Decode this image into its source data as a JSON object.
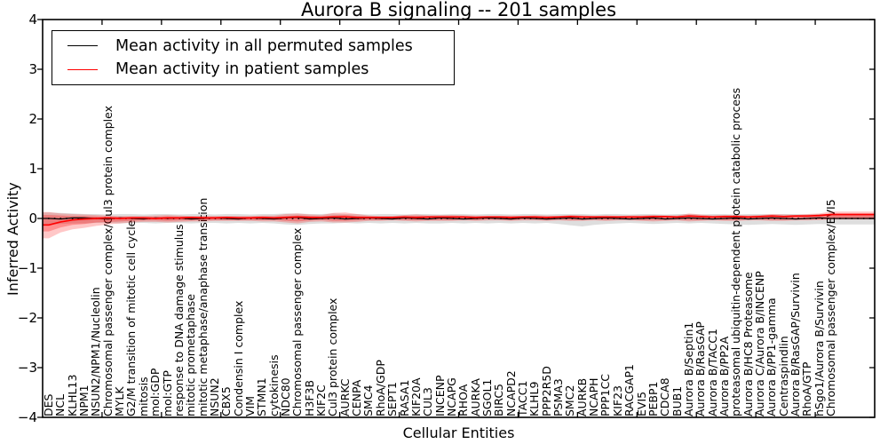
{
  "title": "Aurora B signaling -- 201 samples",
  "axes": {
    "x_label": "Cellular Entities",
    "y_label": "Inferred Activity"
  },
  "legend": {
    "items": [
      {
        "label": "Mean activity in all permuted samples",
        "color": "#000000"
      },
      {
        "label": "Mean activity in patient samples",
        "color": "#ff0000"
      }
    ]
  },
  "colors": {
    "background": "#ffffff",
    "frame": "#000000",
    "permuted_line": "#000000",
    "patient_line": "#ff0000",
    "permuted_band": "rgba(0,0,0,0.13)",
    "patient_band": "rgba(255,0,0,0.22)",
    "patient_band_inner": "rgba(255,0,0,0.28)",
    "zero_line": "#000000"
  },
  "chart_data": {
    "type": "line",
    "title": "Aurora B signaling -- 201 samples",
    "xlabel": "Cellular Entities",
    "ylabel": "Inferred Activity",
    "ylim": [
      -4,
      4
    ],
    "grid": false,
    "legend_position": "upper left",
    "zero_line": true,
    "yticks": [
      {
        "label": "4",
        "value": 4
      },
      {
        "label": "3",
        "value": 3
      },
      {
        "label": "2",
        "value": 2
      },
      {
        "label": "1",
        "value": 1
      },
      {
        "label": "0",
        "value": 0
      },
      {
        "label": "−1",
        "value": -1
      },
      {
        "label": "−2",
        "value": -2
      },
      {
        "label": "−3",
        "value": -3
      },
      {
        "label": "−4",
        "value": -4
      }
    ],
    "categories": [
      "DES",
      "NCL",
      "KLHL13",
      "NPM1",
      "NSUN2/NPM1/Nucleolin",
      "Chromosomal passenger complex/Cul3 protein complex",
      "MYLK",
      "G2/M transition of mitotic cell cycle",
      "mitosis",
      "mol:GDP",
      "mol:GTP",
      "response to DNA damage stimulus",
      "mitotic prometaphase",
      "mitotic metaphase/anaphase transition",
      "NSUN2",
      "CBX5",
      "Condensin I complex",
      "VIM",
      "STMN1",
      "cytokinesis",
      "NDC80",
      "Chromosomal passenger complex",
      "H3F3B",
      "KIF2C",
      "Cul3 protein complex",
      "AURKC",
      "CENPA",
      "SMC4",
      "RhoA/GDP",
      "SEPT1",
      "RASA1",
      "KIF20A",
      "CUL3",
      "INCENP",
      "NCAPG",
      "RHOA",
      "AURKA",
      "SGOL1",
      "BIRC5",
      "NCAPD2",
      "TACC1",
      "KLHL9",
      "PPP2R5D",
      "PSMA3",
      "SMC2",
      "AURKB",
      "NCAPH",
      "PPP1CC",
      "KIF23",
      "RACGAP1",
      "EVI5",
      "PEBP1",
      "CDCA8",
      "BUB1",
      "Aurora B/Septin1",
      "Aurora B/RasGAP",
      "Aurora B/TACC1",
      "Aurora B/PP2A",
      "proteasomal ubiquitin-dependent protein catabolic process",
      "Aurora B/HC8 Proteasome",
      "Aurora C/Aurora B/INCENP",
      "Aurora B/PP1-gamma",
      "Centraspindlin",
      "Aurora B/RasGAP/Survivin",
      "RhoA/GTP",
      "hSgo1/Aurora B/Survivin",
      "Chromosomal passenger complex/EVI5"
    ],
    "series": [
      {
        "name": "Mean activity in all permuted samples",
        "color": "#000000",
        "values": [
          0.0,
          -0.01,
          0.01,
          0.01,
          0.0,
          -0.01,
          0.01,
          0.0,
          -0.01,
          0.01,
          0.0,
          0.01,
          -0.01,
          0.0,
          0.01,
          0.0,
          -0.01,
          0.01,
          0.0,
          -0.01,
          0.01,
          0.02,
          -0.01,
          0.0,
          0.01,
          -0.01,
          0.0,
          0.01,
          0.0,
          -0.01,
          0.01,
          0.0,
          -0.01,
          0.01,
          0.0,
          -0.01,
          0.0,
          0.01,
          0.0,
          -0.01,
          0.01,
          0.0,
          -0.01,
          0.0,
          0.01,
          -0.01,
          0.0,
          0.01,
          0.0,
          -0.01,
          0.0,
          0.01,
          -0.01,
          0.0,
          0.01,
          0.0,
          -0.01,
          0.0,
          0.01,
          -0.01,
          0.0,
          0.01,
          0.0,
          -0.01,
          0.0,
          0.01,
          0.0
        ],
        "band_upper": [
          0.12,
          0.11,
          0.1,
          0.09,
          0.09,
          0.08,
          0.09,
          0.09,
          0.08,
          0.09,
          0.09,
          0.08,
          0.09,
          0.09,
          0.08,
          0.09,
          0.09,
          0.08,
          0.09,
          0.09,
          0.1,
          0.1,
          0.09,
          0.09,
          0.1,
          0.09,
          0.09,
          0.08,
          0.09,
          0.09,
          0.08,
          0.09,
          0.09,
          0.08,
          0.09,
          0.09,
          0.08,
          0.09,
          0.09,
          0.08,
          0.09,
          0.09,
          0.08,
          0.09,
          0.09,
          0.09,
          0.08,
          0.09,
          0.09,
          0.08,
          0.09,
          0.09,
          0.08,
          0.09,
          0.09,
          0.08,
          0.09,
          0.09,
          0.08,
          0.09,
          0.09,
          0.08,
          0.09,
          0.09,
          0.08,
          0.09,
          0.08
        ],
        "band_lower": [
          -0.12,
          -0.11,
          -0.1,
          -0.1,
          -0.09,
          -0.09,
          -0.1,
          -0.09,
          -0.09,
          -0.1,
          -0.09,
          -0.09,
          -0.1,
          -0.09,
          -0.09,
          -0.1,
          -0.09,
          -0.1,
          -0.09,
          -0.1,
          -0.12,
          -0.13,
          -0.11,
          -0.1,
          -0.1,
          -0.09,
          -0.1,
          -0.09,
          -0.1,
          -0.09,
          -0.1,
          -0.09,
          -0.1,
          -0.1,
          -0.09,
          -0.1,
          -0.09,
          -0.1,
          -0.09,
          -0.1,
          -0.09,
          -0.1,
          -0.09,
          -0.11,
          -0.14,
          -0.16,
          -0.13,
          -0.11,
          -0.1,
          -0.09,
          -0.1,
          -0.11,
          -0.1,
          -0.09,
          -0.1,
          -0.09,
          -0.1,
          -0.11,
          -0.12,
          -0.13,
          -0.12,
          -0.11,
          -0.12,
          -0.13,
          -0.12,
          -0.11,
          -0.12
        ]
      },
      {
        "name": "Mean activity in patient samples",
        "color": "#ff0000",
        "values": [
          -0.13,
          -0.07,
          -0.03,
          -0.01,
          0.0,
          0.01,
          0.0,
          0.01,
          0.01,
          0.0,
          0.01,
          0.01,
          0.02,
          0.01,
          0.01,
          0.02,
          0.01,
          0.01,
          0.02,
          0.01,
          0.02,
          0.03,
          0.02,
          0.02,
          0.03,
          0.03,
          0.02,
          0.02,
          0.02,
          0.02,
          0.03,
          0.02,
          0.03,
          0.03,
          0.03,
          0.03,
          0.02,
          0.03,
          0.03,
          0.02,
          0.03,
          0.03,
          0.02,
          0.03,
          0.04,
          0.03,
          0.03,
          0.03,
          0.03,
          0.03,
          0.03,
          0.04,
          0.04,
          0.03,
          0.05,
          0.04,
          0.03,
          0.04,
          0.04,
          0.03,
          0.04,
          0.05,
          0.04,
          0.05,
          0.05,
          0.06,
          0.08
        ],
        "band_upper": [
          0.13,
          0.1,
          0.09,
          0.08,
          0.07,
          0.06,
          0.05,
          0.05,
          0.05,
          0.06,
          0.07,
          0.06,
          0.05,
          0.05,
          0.05,
          0.05,
          0.05,
          0.05,
          0.06,
          0.06,
          0.09,
          0.1,
          0.08,
          0.07,
          0.11,
          0.12,
          0.09,
          0.06,
          0.05,
          0.05,
          0.07,
          0.08,
          0.06,
          0.07,
          0.07,
          0.06,
          0.06,
          0.05,
          0.05,
          0.06,
          0.05,
          0.06,
          0.06,
          0.05,
          0.07,
          0.06,
          0.05,
          0.06,
          0.05,
          0.06,
          0.06,
          0.07,
          0.06,
          0.06,
          0.1,
          0.08,
          0.06,
          0.07,
          0.07,
          0.06,
          0.07,
          0.09,
          0.08,
          0.07,
          0.09,
          0.1,
          0.14
        ],
        "band_lower": [
          -0.4,
          -0.28,
          -0.22,
          -0.19,
          -0.15,
          -0.12,
          -0.1,
          -0.08,
          -0.07,
          -0.07,
          -0.08,
          -0.07,
          -0.06,
          -0.06,
          -0.05,
          -0.05,
          -0.05,
          -0.05,
          -0.06,
          -0.06,
          -0.08,
          -0.1,
          -0.07,
          -0.06,
          -0.08,
          -0.08,
          -0.07,
          -0.05,
          -0.05,
          -0.04,
          -0.05,
          -0.06,
          -0.05,
          -0.05,
          -0.05,
          -0.04,
          -0.05,
          -0.04,
          -0.04,
          -0.05,
          -0.04,
          -0.04,
          -0.05,
          -0.04,
          -0.05,
          -0.05,
          -0.04,
          -0.05,
          -0.04,
          -0.04,
          -0.05,
          -0.06,
          -0.05,
          -0.04,
          -0.06,
          -0.05,
          -0.04,
          -0.05,
          -0.05,
          -0.04,
          -0.04,
          -0.05,
          -0.05,
          -0.04,
          -0.04,
          -0.03,
          -0.02
        ],
        "inner_band_upper": [
          0.07,
          0.06,
          0.05,
          0.05,
          0.04,
          0.03,
          0.03,
          0.03,
          0.03,
          0.03,
          0.04,
          0.03,
          0.03,
          0.03,
          0.03,
          0.03,
          0.03,
          0.03,
          0.03,
          0.03,
          0.05,
          0.06,
          0.05,
          0.04,
          0.06,
          0.07,
          0.05,
          0.04,
          0.03,
          0.03,
          0.04,
          0.05,
          0.04,
          0.04,
          0.04,
          0.03,
          0.03,
          0.03,
          0.03,
          0.03,
          0.03,
          0.03,
          0.03,
          0.03,
          0.04,
          0.03,
          0.03,
          0.03,
          0.03,
          0.03,
          0.03,
          0.04,
          0.03,
          0.03,
          0.06,
          0.05,
          0.03,
          0.04,
          0.04,
          0.03,
          0.04,
          0.05,
          0.05,
          0.04,
          0.05,
          0.06,
          0.09
        ],
        "inner_band_lower": [
          -0.26,
          -0.18,
          -0.13,
          -0.11,
          -0.08,
          -0.07,
          -0.06,
          -0.05,
          -0.04,
          -0.04,
          -0.05,
          -0.04,
          -0.04,
          -0.03,
          -0.03,
          -0.03,
          -0.03,
          -0.03,
          -0.03,
          -0.03,
          -0.05,
          -0.06,
          -0.04,
          -0.03,
          -0.05,
          -0.05,
          -0.04,
          -0.03,
          -0.03,
          -0.02,
          -0.03,
          -0.03,
          -0.03,
          -0.03,
          -0.03,
          -0.02,
          -0.03,
          -0.02,
          -0.02,
          -0.03,
          -0.02,
          -0.02,
          -0.03,
          -0.02,
          -0.03,
          -0.03,
          -0.02,
          -0.03,
          -0.02,
          -0.02,
          -0.03,
          -0.03,
          -0.03,
          -0.02,
          -0.03,
          -0.03,
          -0.02,
          -0.03,
          -0.03,
          -0.02,
          -0.02,
          -0.03,
          -0.03,
          -0.02,
          -0.02,
          -0.02,
          -0.01
        ]
      }
    ]
  }
}
